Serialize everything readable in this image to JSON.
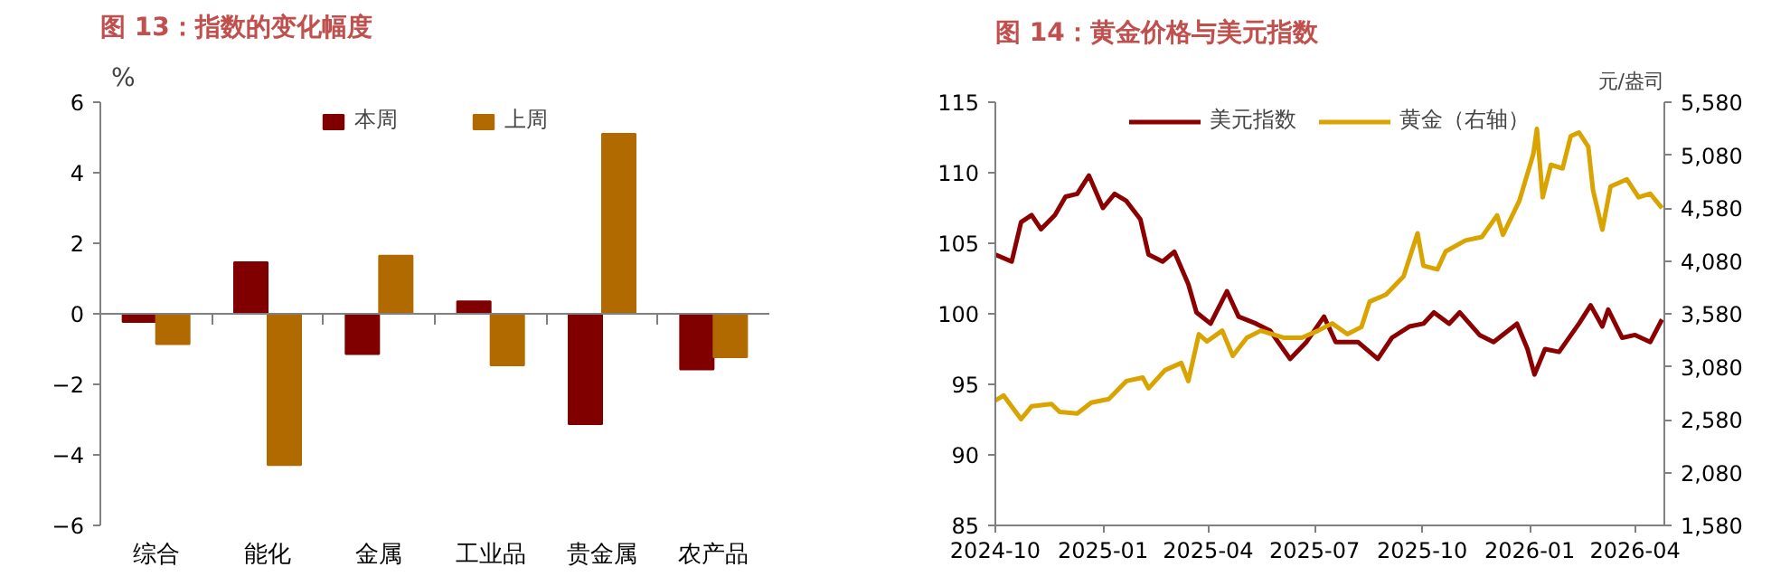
{
  "chart_data": [
    {
      "type": "bar",
      "title": "图 13：指数的变化幅度",
      "ylabel": "%",
      "categories": [
        "综合",
        "能化",
        "金属",
        "工业品",
        "贵金属",
        "农产品"
      ],
      "series": [
        {
          "name": "本周",
          "color": "#800000",
          "values": [
            -0.23,
            1.46,
            -1.14,
            0.35,
            -3.13,
            -1.58
          ]
        },
        {
          "name": "上周",
          "color": "#b06a00",
          "values": [
            -0.86,
            -4.29,
            1.65,
            -1.46,
            5.1,
            -1.23
          ]
        }
      ],
      "ylim": [
        -6,
        6
      ],
      "yticks": [
        -6,
        -4,
        -2,
        0,
        2,
        4,
        6
      ],
      "ref_lines": [
        {
          "axis": "y",
          "value": 0,
          "color": "#808080"
        }
      ],
      "legend": "top",
      "grid": false
    },
    {
      "type": "line",
      "title": "图 14：黄金价格与美元指数",
      "y2label": "元/盎司",
      "xlim": [
        "2024-10-01",
        "2026-04-26"
      ],
      "xticks": [
        "2024-10",
        "2025-01",
        "2025-04",
        "2025-07",
        "2025-10",
        "2026-01",
        "2026-04"
      ],
      "ylim": [
        85,
        115
      ],
      "yticks": [
        85,
        90,
        95,
        100,
        105,
        110,
        115
      ],
      "y2lim": [
        1580,
        5580
      ],
      "y2ticks": [
        {
          "value": 1580,
          "label": "1,580"
        },
        {
          "value": 2080,
          "label": "2,080"
        },
        {
          "value": 2580,
          "label": "2,580"
        },
        {
          "value": 3080,
          "label": "3,080"
        },
        {
          "value": 3580,
          "label": "3,580"
        },
        {
          "value": 4080,
          "label": "4,080"
        },
        {
          "value": 4580,
          "label": "4,580"
        },
        {
          "value": 5080,
          "label": "5,080"
        },
        {
          "value": 5580,
          "label": "5,580"
        }
      ],
      "legend": "top",
      "grid": false,
      "line_style": "solid",
      "marker": "none",
      "series": [
        {
          "name": "美元指数",
          "color": "#8b0000",
          "x": [
            "2024-10-01",
            "2024-10-15",
            "2024-10-23",
            "2024-11-01",
            "2024-11-09",
            "2024-11-21",
            "2024-11-30",
            "2024-12-10",
            "2024-12-20",
            "2025-01-01",
            "2025-01-11",
            "2025-01-21",
            "2025-02-02",
            "2025-02-09",
            "2025-02-21",
            "2025-03-03",
            "2025-03-15",
            "2025-03-22",
            "2025-04-03",
            "2025-04-17",
            "2025-04-27",
            "2025-05-12",
            "2025-05-24",
            "2025-06-10",
            "2025-06-24",
            "2025-07-09",
            "2025-07-19",
            "2025-08-07",
            "2025-08-24",
            "2025-09-05",
            "2025-09-20",
            "2025-10-02",
            "2025-10-11",
            "2025-10-24",
            "2025-11-02",
            "2025-11-19",
            "2025-12-01",
            "2025-12-21",
            "2025-12-30",
            "2026-01-05",
            "2026-01-14",
            "2026-01-26",
            "2026-02-12",
            "2026-02-22",
            "2026-03-04",
            "2026-03-09",
            "2026-03-21",
            "2026-04-01",
            "2026-04-14",
            "2026-04-24"
          ],
          "values": [
            104.2,
            103.7,
            106.5,
            107.0,
            106.0,
            107.0,
            108.3,
            108.5,
            109.8,
            107.5,
            108.5,
            108.0,
            106.7,
            104.2,
            103.7,
            104.4,
            102.1,
            100.1,
            99.3,
            101.6,
            99.8,
            99.3,
            98.8,
            96.8,
            98.0,
            99.8,
            98.0,
            98.0,
            96.8,
            98.3,
            99.1,
            99.3,
            100.1,
            99.3,
            100.1,
            98.5,
            98.0,
            99.3,
            97.5,
            95.7,
            97.5,
            97.3,
            99.3,
            100.6,
            99.1,
            100.3,
            98.3,
            98.5,
            98.0,
            99.6
          ]
        },
        {
          "name": "黄金（右轴）",
          "color": "#d9a300",
          "axis": "y2",
          "x": [
            "2024-10-01",
            "2024-10-08",
            "2024-10-23",
            "2024-11-01",
            "2024-11-18",
            "2024-11-25",
            "2024-12-10",
            "2024-12-22",
            "2025-01-06",
            "2025-01-21",
            "2025-02-04",
            "2025-02-09",
            "2025-02-23",
            "2025-03-09",
            "2025-03-15",
            "2025-03-24",
            "2025-03-31",
            "2025-04-13",
            "2025-04-22",
            "2025-05-04",
            "2025-05-16",
            "2025-06-05",
            "2025-06-20",
            "2025-07-04",
            "2025-07-16",
            "2025-07-29",
            "2025-08-10",
            "2025-08-17",
            "2025-08-31",
            "2025-09-15",
            "2025-09-27",
            "2025-10-02",
            "2025-10-14",
            "2025-10-21",
            "2025-11-07",
            "2025-11-21",
            "2025-12-04",
            "2025-12-09",
            "2025-12-23",
            "2026-01-04",
            "2026-01-07",
            "2026-01-12",
            "2026-01-19",
            "2026-01-29",
            "2026-02-05",
            "2026-02-12",
            "2026-02-20",
            "2026-02-24",
            "2026-03-04",
            "2026-03-11",
            "2026-03-25",
            "2026-04-04",
            "2026-04-14",
            "2026-04-24"
          ],
          "values": [
            2761,
            2808,
            2584,
            2706,
            2727,
            2652,
            2638,
            2740,
            2774,
            2944,
            2978,
            2876,
            3047,
            3115,
            2944,
            3387,
            3319,
            3421,
            3183,
            3353,
            3421,
            3353,
            3353,
            3421,
            3489,
            3387,
            3455,
            3694,
            3762,
            3932,
            4341,
            4034,
            4000,
            4170,
            4273,
            4307,
            4511,
            4327,
            4647,
            5090,
            5328,
            4681,
            4988,
            4954,
            5260,
            5294,
            5158,
            4749,
            4375,
            4783,
            4851,
            4681,
            4715,
            4579
          ]
        }
      ]
    }
  ]
}
